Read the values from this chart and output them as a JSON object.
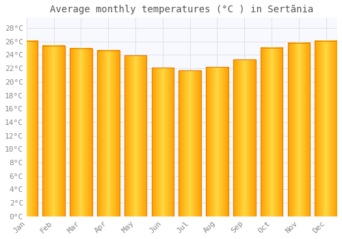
{
  "title": "Average monthly temperatures (°C ) in Sertãnia",
  "months": [
    "Jan",
    "Feb",
    "Mar",
    "Apr",
    "May",
    "Jun",
    "Jul",
    "Aug",
    "Sep",
    "Oct",
    "Nov",
    "Dec"
  ],
  "values": [
    26.1,
    25.4,
    25.0,
    24.7,
    23.9,
    22.1,
    21.7,
    22.2,
    23.3,
    25.1,
    25.8,
    26.1
  ],
  "bar_color": "#FFB020",
  "bar_edge_color": "#E08000",
  "background_color": "#FFFFFF",
  "plot_bg_color": "#F8F8FF",
  "grid_color": "#E0E0E8",
  "yticks": [
    0,
    2,
    4,
    6,
    8,
    10,
    12,
    14,
    16,
    18,
    20,
    22,
    24,
    26,
    28
  ],
  "ylim": [
    0,
    29.5
  ],
  "title_fontsize": 10,
  "tick_fontsize": 8,
  "font_color": "#888888",
  "title_color": "#555555"
}
